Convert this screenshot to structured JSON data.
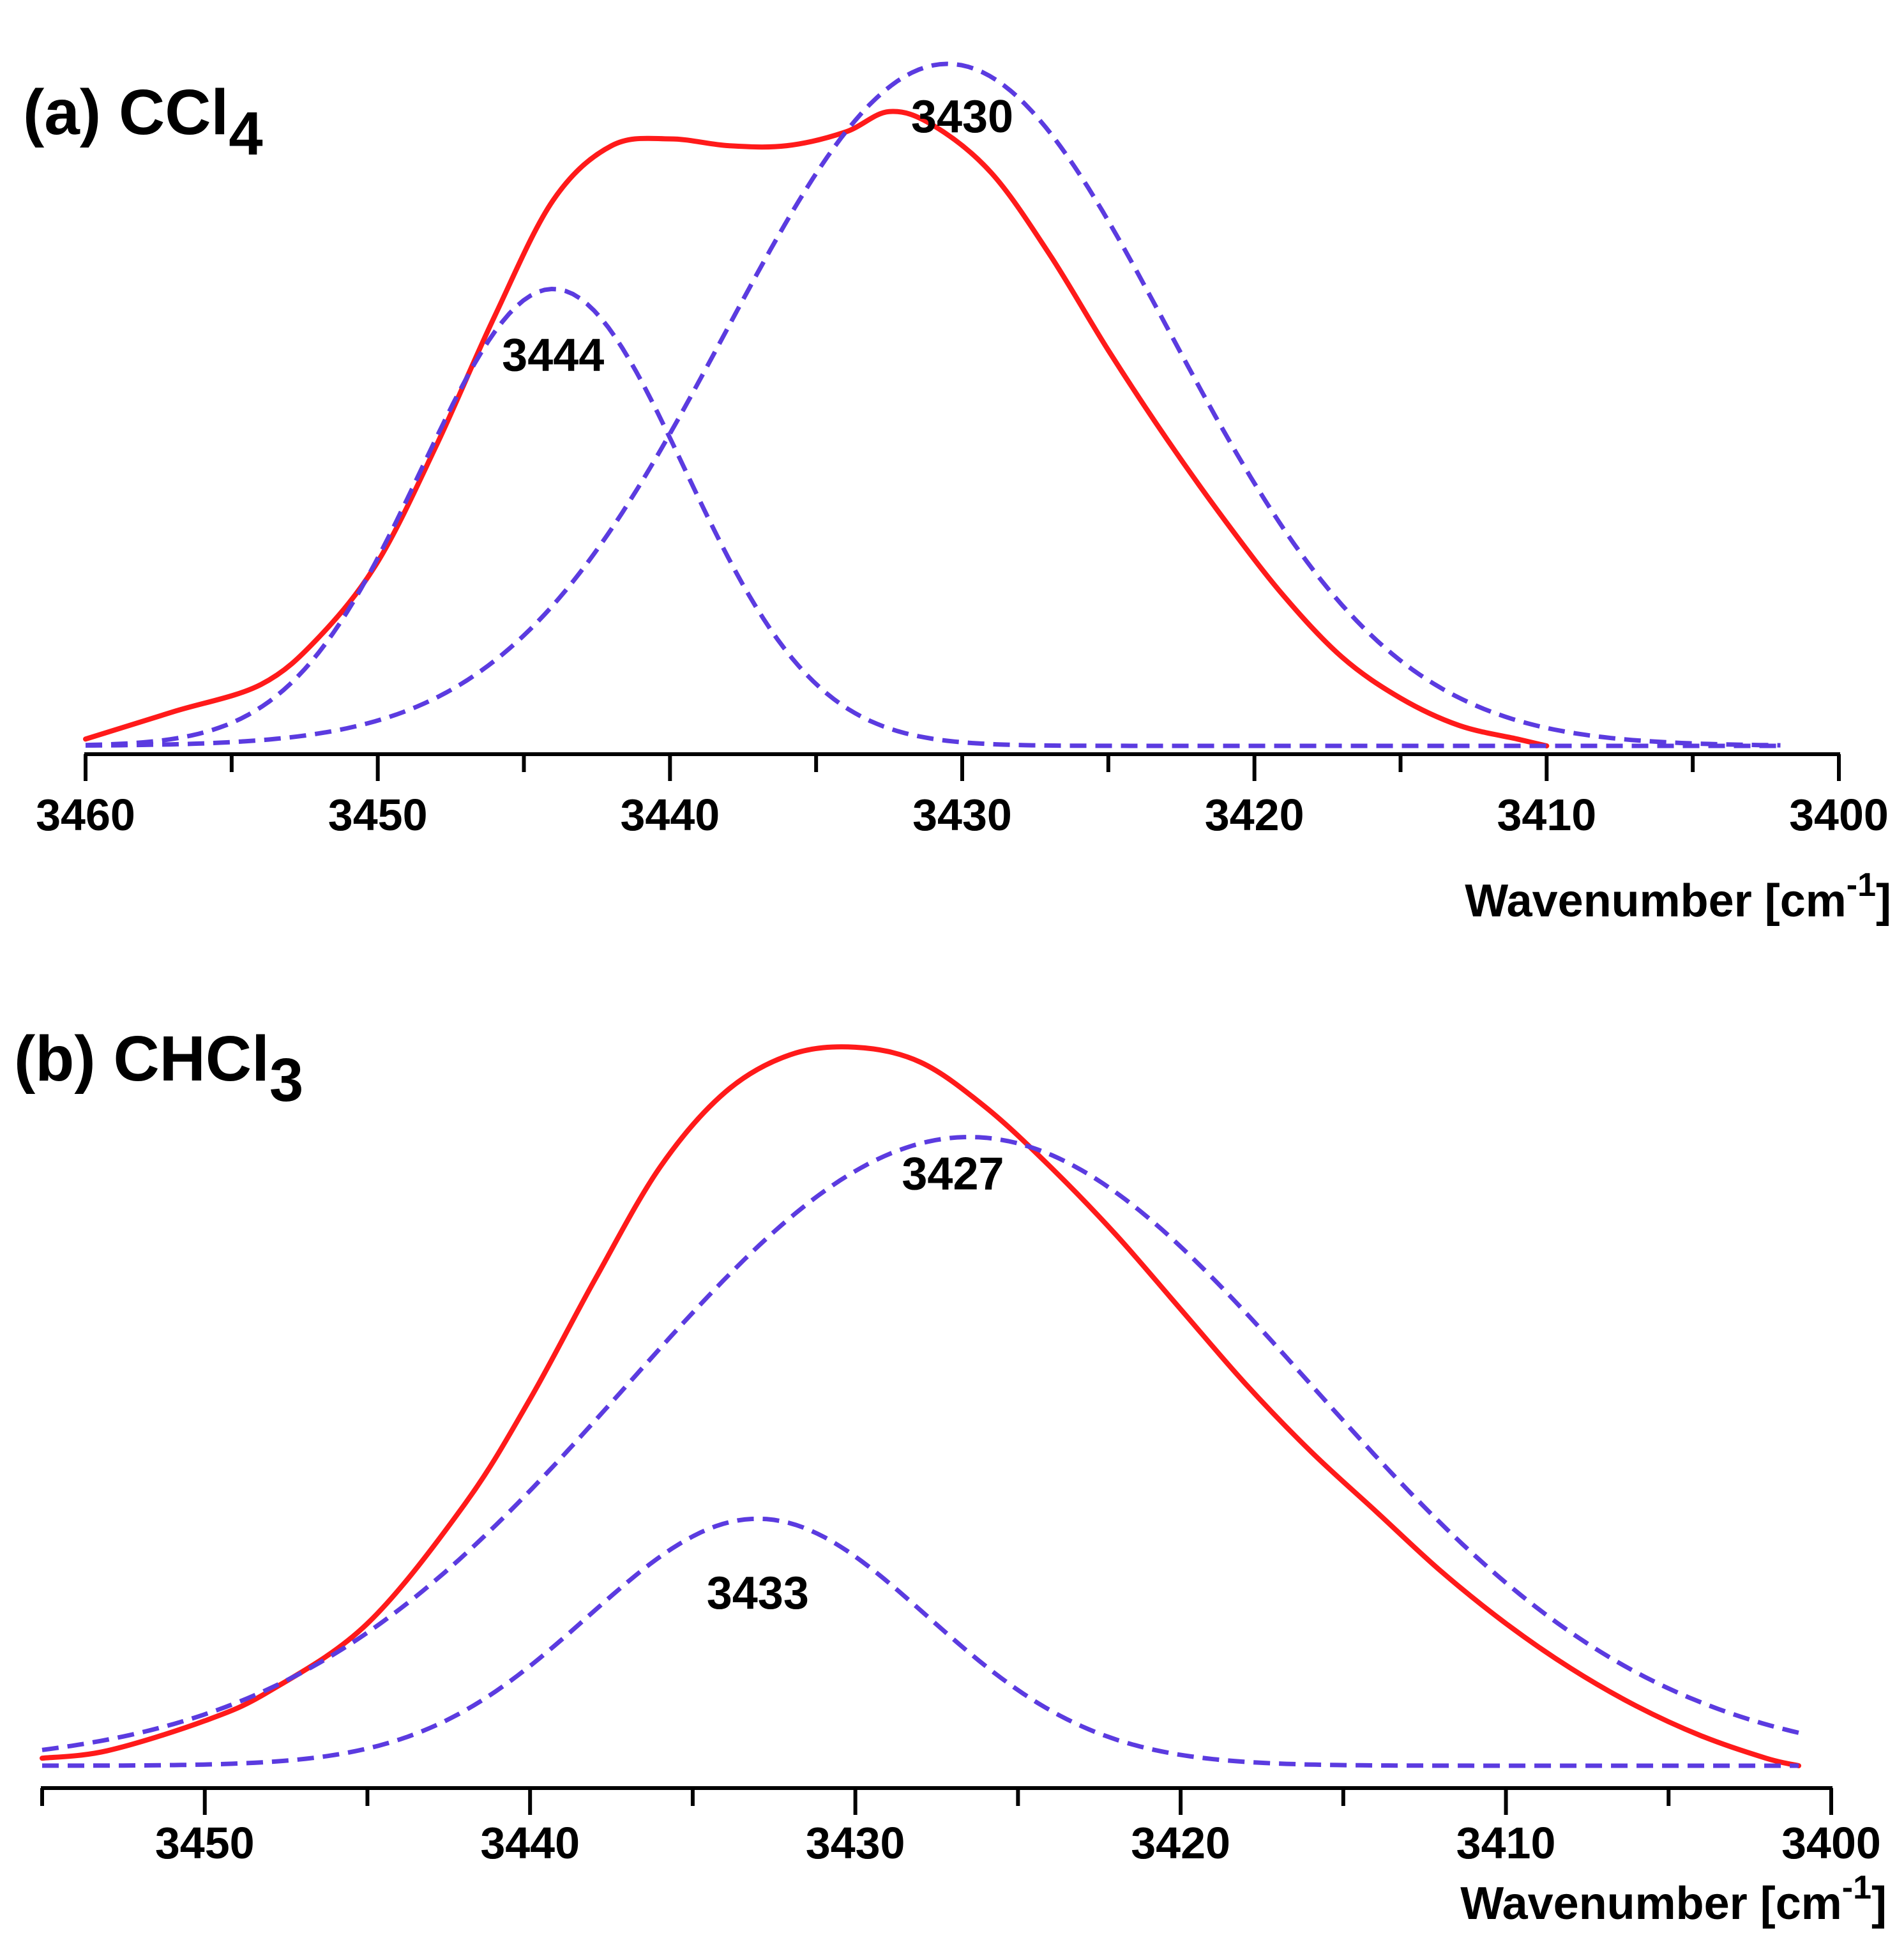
{
  "colors": {
    "sum": "#ff1a1a",
    "component": "#5b3be0",
    "axis": "#000000"
  },
  "chart_data": [
    {
      "type": "line",
      "panel_label": "(a)",
      "title": "CCl",
      "title_subscript": "4",
      "xlabel": "Wavenumber [cm",
      "xlabel_superscript": "-1",
      "xlabel_close": "]",
      "xlim": [
        3460,
        3400
      ],
      "x_reversed": true,
      "major_ticks": [
        3460,
        3450,
        3440,
        3430,
        3420,
        3410,
        3400
      ],
      "tick_labels": [
        "3460",
        "3450",
        "3440",
        "3430",
        "3420",
        "3410",
        "3400"
      ],
      "minor_ticks": [
        3455,
        3445,
        3435,
        3425,
        3415,
        3405
      ],
      "ylim": [
        0,
        1.0
      ],
      "series": [
        {
          "name": "envelope",
          "style": "solid",
          "x": [
            3460,
            3457,
            3454,
            3452,
            3450,
            3448,
            3446,
            3444,
            3442,
            3440,
            3438,
            3436,
            3434,
            3432.5,
            3431,
            3429,
            3427,
            3425,
            3423,
            3421,
            3419,
            3417,
            3415,
            3413,
            3411,
            3410
          ],
          "y": [
            0.01,
            0.05,
            0.09,
            0.16,
            0.27,
            0.44,
            0.63,
            0.8,
            0.88,
            0.89,
            0.88,
            0.88,
            0.9,
            0.93,
            0.91,
            0.84,
            0.72,
            0.58,
            0.45,
            0.33,
            0.22,
            0.13,
            0.07,
            0.03,
            0.01,
            0.0
          ]
        },
        {
          "name": "component 3444",
          "style": "dashed",
          "center": 3444,
          "amplitude": 0.67,
          "sigma": 4.5,
          "x_range": [
            3460,
            3402
          ]
        },
        {
          "name": "component 3430",
          "style": "dashed",
          "center": 3430.5,
          "amplitude": 1.0,
          "sigma": 7.6,
          "x_range": [
            3460,
            3402
          ]
        }
      ],
      "annotations": [
        {
          "text": "3444",
          "x": 3444,
          "y": 0.55
        },
        {
          "text": "3430",
          "x": 3430,
          "y": 0.9
        }
      ]
    },
    {
      "type": "line",
      "panel_label": "(b)",
      "title": "CHCl",
      "title_subscript": "3",
      "xlabel": "Wavenumber [cm",
      "xlabel_superscript": "-1",
      "xlabel_close": "]",
      "xlim": [
        3455,
        3400
      ],
      "x_reversed": true,
      "major_ticks": [
        3450,
        3440,
        3430,
        3420,
        3410,
        3400
      ],
      "tick_labels": [
        "3450",
        "3440",
        "3430",
        "3420",
        "3410",
        "3400"
      ],
      "minor_ticks": [
        3455,
        3445,
        3435,
        3425,
        3415,
        3405
      ],
      "ylim": [
        0,
        1.0
      ],
      "series": [
        {
          "name": "envelope",
          "style": "solid",
          "x": [
            3455,
            3453,
            3450,
            3448,
            3445,
            3442,
            3440,
            3438,
            3436,
            3434,
            3432,
            3430,
            3428,
            3426,
            3424,
            3422,
            3420,
            3418,
            3416,
            3414,
            3412,
            3410,
            3408,
            3406,
            3404,
            3402,
            3401
          ],
          "y": [
            0.01,
            0.02,
            0.06,
            0.1,
            0.19,
            0.35,
            0.49,
            0.65,
            0.8,
            0.9,
            0.95,
            0.96,
            0.94,
            0.88,
            0.8,
            0.71,
            0.61,
            0.51,
            0.42,
            0.34,
            0.26,
            0.19,
            0.13,
            0.08,
            0.04,
            0.01,
            0.0
          ]
        },
        {
          "name": "component 3433",
          "style": "dashed",
          "center": 3433,
          "amplitude": 0.33,
          "sigma": 5.2,
          "x_range": [
            3455,
            3401
          ]
        },
        {
          "name": "component 3427",
          "style": "dashed",
          "center": 3426.5,
          "amplitude": 0.84,
          "sigma": 10.5,
          "baseline": 0.0,
          "x_range": [
            3455,
            3401
          ]
        }
      ],
      "annotations": [
        {
          "text": "3427",
          "x": 3427,
          "y": 0.77
        },
        {
          "text": "3433",
          "x": 3433,
          "y": 0.21
        }
      ]
    }
  ]
}
